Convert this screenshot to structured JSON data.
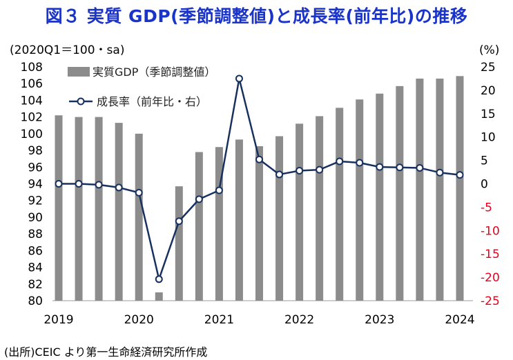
{
  "title": "図３ 実質 GDP(季節調整値)と成長率(前年比)の推移",
  "source": "(出所)CEIC より第一生命経済研究所作成",
  "chart_data": {
    "type": "bar+line",
    "left_axis_unit": "(2020Q1＝100・sa)",
    "right_axis_unit": "(%)",
    "left_ylim": [
      80,
      108
    ],
    "right_ylim": [
      -25,
      25
    ],
    "left_ticks": [
      80,
      82,
      84,
      86,
      88,
      90,
      92,
      94,
      96,
      98,
      100,
      102,
      104,
      106,
      108
    ],
    "right_ticks": [
      25,
      20,
      15,
      10,
      5,
      0,
      -5,
      -10,
      -15,
      -20,
      -25
    ],
    "x_labels": [
      "2019",
      "2020",
      "2021",
      "2022",
      "2023",
      "2024"
    ],
    "quarters": [
      "2019Q1",
      "2019Q2",
      "2019Q3",
      "2019Q4",
      "2020Q1",
      "2020Q2",
      "2020Q3",
      "2020Q4",
      "2021Q1",
      "2021Q2",
      "2021Q3",
      "2021Q4",
      "2022Q1",
      "2022Q2",
      "2022Q3",
      "2022Q4",
      "2023Q1",
      "2023Q2",
      "2023Q3",
      "2023Q4",
      "2024Q1",
      "2024Q2"
    ],
    "series": [
      {
        "name": "実質GDP（季節調整値）",
        "axis": "left",
        "type": "bar",
        "color": "#8c8c8c",
        "values": [
          102.2,
          102.0,
          102.0,
          101.3,
          100.0,
          81.0,
          93.7,
          97.8,
          98.4,
          99.3,
          98.5,
          99.7,
          101.2,
          102.1,
          103.1,
          104.1,
          104.8,
          105.7,
          106.6,
          106.6,
          106.9,
          0
        ]
      },
      {
        "name": "成長率（前年比・右）",
        "axis": "right",
        "type": "line",
        "color": "#17305e",
        "values": [
          0.0,
          0.0,
          -0.2,
          -0.8,
          -1.9,
          -20.4,
          -8.0,
          -3.3,
          -1.4,
          22.5,
          5.2,
          2.0,
          2.8,
          3.0,
          4.8,
          4.5,
          3.6,
          3.5,
          3.4,
          2.4,
          1.9
        ]
      }
    ]
  }
}
